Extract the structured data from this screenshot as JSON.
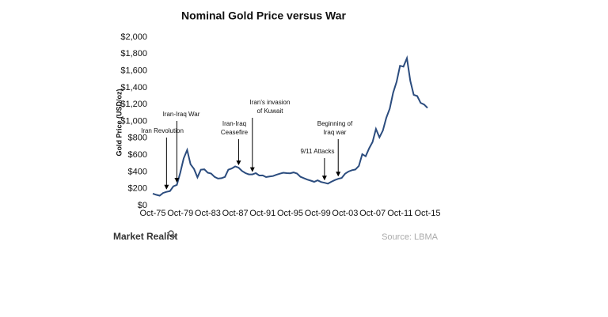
{
  "chart_data": {
    "type": "line",
    "title": "Nominal Gold Price versus War",
    "y_label": "Gold Price (USD/oz)",
    "color": "#2b4c7e",
    "grid": false,
    "x": [
      "Oct-75",
      "Apr-76",
      "Oct-76",
      "Apr-77",
      "Oct-77",
      "Apr-78",
      "Oct-78",
      "Apr-79",
      "Oct-79",
      "Apr-80",
      "Oct-80",
      "Apr-81",
      "Oct-81",
      "Apr-82",
      "Oct-82",
      "Apr-83",
      "Oct-83",
      "Apr-84",
      "Oct-84",
      "Apr-85",
      "Oct-85",
      "Apr-86",
      "Oct-86",
      "Apr-87",
      "Oct-87",
      "Apr-88",
      "Oct-88",
      "Apr-89",
      "Oct-89",
      "Apr-90",
      "Oct-90",
      "Apr-91",
      "Oct-91",
      "Apr-92",
      "Oct-92",
      "Apr-93",
      "Oct-93",
      "Apr-94",
      "Oct-94",
      "Apr-95",
      "Oct-95",
      "Apr-96",
      "Oct-96",
      "Apr-97",
      "Oct-97",
      "Apr-98",
      "Oct-98",
      "Apr-99",
      "Oct-99",
      "Apr-00",
      "Oct-00",
      "Apr-01",
      "Oct-01",
      "Apr-02",
      "Oct-02",
      "Apr-03",
      "Oct-03",
      "Apr-04",
      "Oct-04",
      "Apr-05",
      "Oct-05",
      "Apr-06",
      "Oct-06",
      "Apr-07",
      "Oct-07",
      "Apr-08",
      "Oct-08",
      "Apr-09",
      "Oct-09",
      "Apr-10",
      "Oct-10",
      "Apr-11",
      "Oct-11",
      "Apr-12",
      "Oct-12",
      "Apr-13",
      "Oct-13",
      "Apr-14",
      "Oct-14",
      "Apr-15",
      "Oct-15"
    ],
    "values": [
      142,
      128,
      117,
      149,
      162,
      172,
      228,
      245,
      390,
      560,
      660,
      490,
      435,
      335,
      425,
      430,
      390,
      380,
      340,
      320,
      325,
      340,
      425,
      440,
      465,
      450,
      410,
      385,
      370,
      370,
      385,
      357,
      358,
      338,
      345,
      350,
      365,
      378,
      390,
      385,
      383,
      393,
      380,
      342,
      325,
      308,
      296,
      282,
      300,
      280,
      270,
      260,
      283,
      302,
      317,
      328,
      378,
      404,
      420,
      428,
      470,
      610,
      585,
      680,
      755,
      910,
      810,
      890,
      1040,
      1150,
      1340,
      1470,
      1660,
      1650,
      1750,
      1480,
      1315,
      1300,
      1220,
      1200,
      1160
    ],
    "xticks": [
      "Oct-75",
      "Oct-79",
      "Oct-83",
      "Oct-87",
      "Oct-91",
      "Oct-95",
      "Oct-99",
      "Oct-03",
      "Oct-07",
      "Oct-11",
      "Oct-15"
    ],
    "ylim": [
      0,
      2000
    ],
    "yticks": [
      {
        "value": 0,
        "label": "$0"
      },
      {
        "value": 200,
        "label": "$200"
      },
      {
        "value": 400,
        "label": "$400"
      },
      {
        "value": 600,
        "label": "$600"
      },
      {
        "value": 800,
        "label": "$800"
      },
      {
        "value": 1000,
        "label": "$1,000"
      },
      {
        "value": 1200,
        "label": "$1,200"
      },
      {
        "value": 1400,
        "label": "$1,400"
      },
      {
        "value": 1600,
        "label": "$1,600"
      },
      {
        "value": 1800,
        "label": "$1,800"
      },
      {
        "value": 2000,
        "label": "$2,000"
      }
    ],
    "annotations": [
      {
        "text": [
          "Iran Revolution"
        ],
        "x": "Oct-77"
      },
      {
        "text": [
          "Iran-Iraq War"
        ],
        "x": "Apr-79"
      },
      {
        "text": [
          "Iran-Iraq",
          "Ceasefire"
        ],
        "x": "Apr-88"
      },
      {
        "text": [
          "Iran's invasion",
          "of Kuwait"
        ],
        "x": "Apr-90"
      },
      {
        "text": [
          "9/11 Attacks"
        ],
        "x": "Oct-00"
      },
      {
        "text": [
          "Beginning of",
          "Iraq war"
        ],
        "x": "Oct-02"
      }
    ]
  },
  "footer": {
    "brand": "Market Realist",
    "source": "Source: LBMA"
  }
}
